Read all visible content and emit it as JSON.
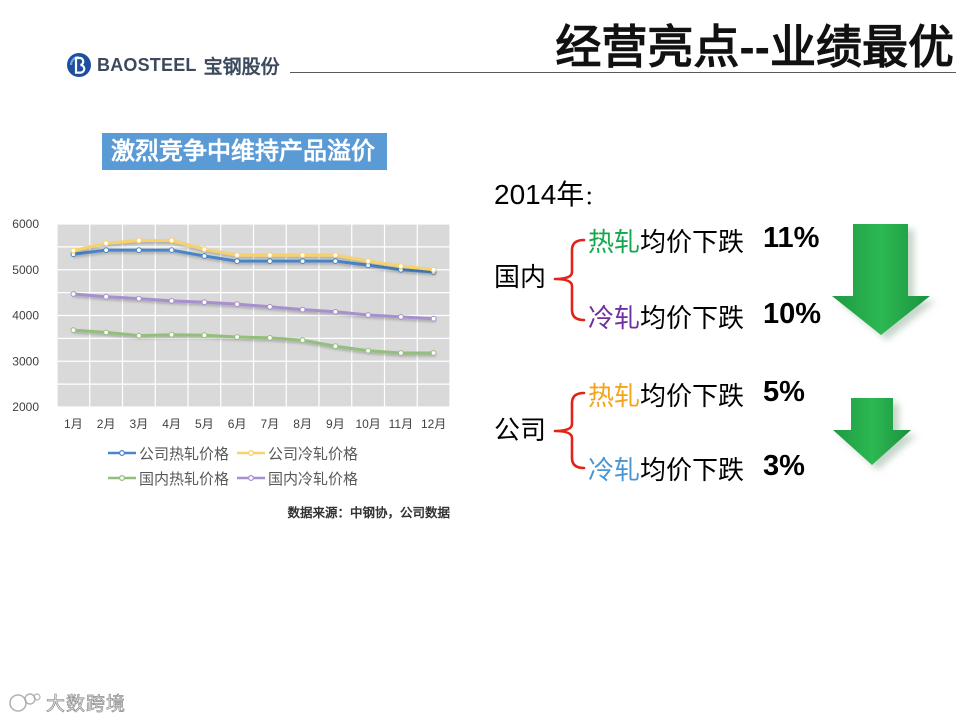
{
  "header": {
    "logo_name": "BAOSTEEL",
    "logo_cn": "宝钢股份",
    "title": "经营亮点--业绩最优"
  },
  "banner": {
    "text": "激烈竞争中维持产品溢价"
  },
  "chart_data": {
    "type": "line",
    "categories": [
      "1月",
      "2月",
      "3月",
      "4月",
      "5月",
      "6月",
      "7月",
      "8月",
      "9月",
      "10月",
      "11月",
      "12月"
    ],
    "ylim": [
      2000,
      6000
    ],
    "yticks": [
      2000,
      3000,
      4000,
      5000,
      6000
    ],
    "grid": true,
    "grid_step": 500,
    "legend_position": "bottom",
    "series": [
      {
        "name": "公司热轧价格",
        "color": "#4A86C8",
        "values": [
          5340,
          5430,
          5430,
          5430,
          5300,
          5190,
          5190,
          5190,
          5190,
          5100,
          5000,
          4950
        ]
      },
      {
        "name": "公司冷轧价格",
        "color": "#F7D16A",
        "values": [
          5420,
          5580,
          5640,
          5640,
          5450,
          5320,
          5320,
          5320,
          5320,
          5190,
          5080,
          5000
        ]
      },
      {
        "name": "国内热轧价格",
        "color": "#93BE7C",
        "values": [
          3680,
          3630,
          3560,
          3580,
          3570,
          3530,
          3510,
          3460,
          3330,
          3230,
          3180,
          3180
        ]
      },
      {
        "name": "国内冷轧价格",
        "color": "#A690CE",
        "values": [
          4470,
          4410,
          4370,
          4320,
          4290,
          4250,
          4190,
          4130,
          4080,
          4010,
          3970,
          3930
        ]
      }
    ],
    "source_note": "数据来源：中钢协，公司数据"
  },
  "summary": {
    "year": "2014年",
    "year_colon": "：",
    "groups": [
      {
        "label": "国内",
        "rows": [
          {
            "product": "热轧",
            "product_color": "#14A84E",
            "change": "均价下跌",
            "pct": "11%"
          },
          {
            "product": "冷轧",
            "product_color": "#7030A0",
            "change": "均价下跌",
            "pct": "10%"
          }
        ]
      },
      {
        "label": "公司",
        "rows": [
          {
            "product": "热轧",
            "product_color": "#F2A51C",
            "change": "均价下跌",
            "pct": "5%"
          },
          {
            "product": "冷轧",
            "product_color": "#4A96D2",
            "change": "均价下跌",
            "pct": "3%"
          }
        ]
      }
    ]
  },
  "colors": {
    "banner_bg": "#5B9BD5",
    "bracket": "#E2231A",
    "plot_bg": "#D9D9D9"
  },
  "watermark": "大数跨境"
}
